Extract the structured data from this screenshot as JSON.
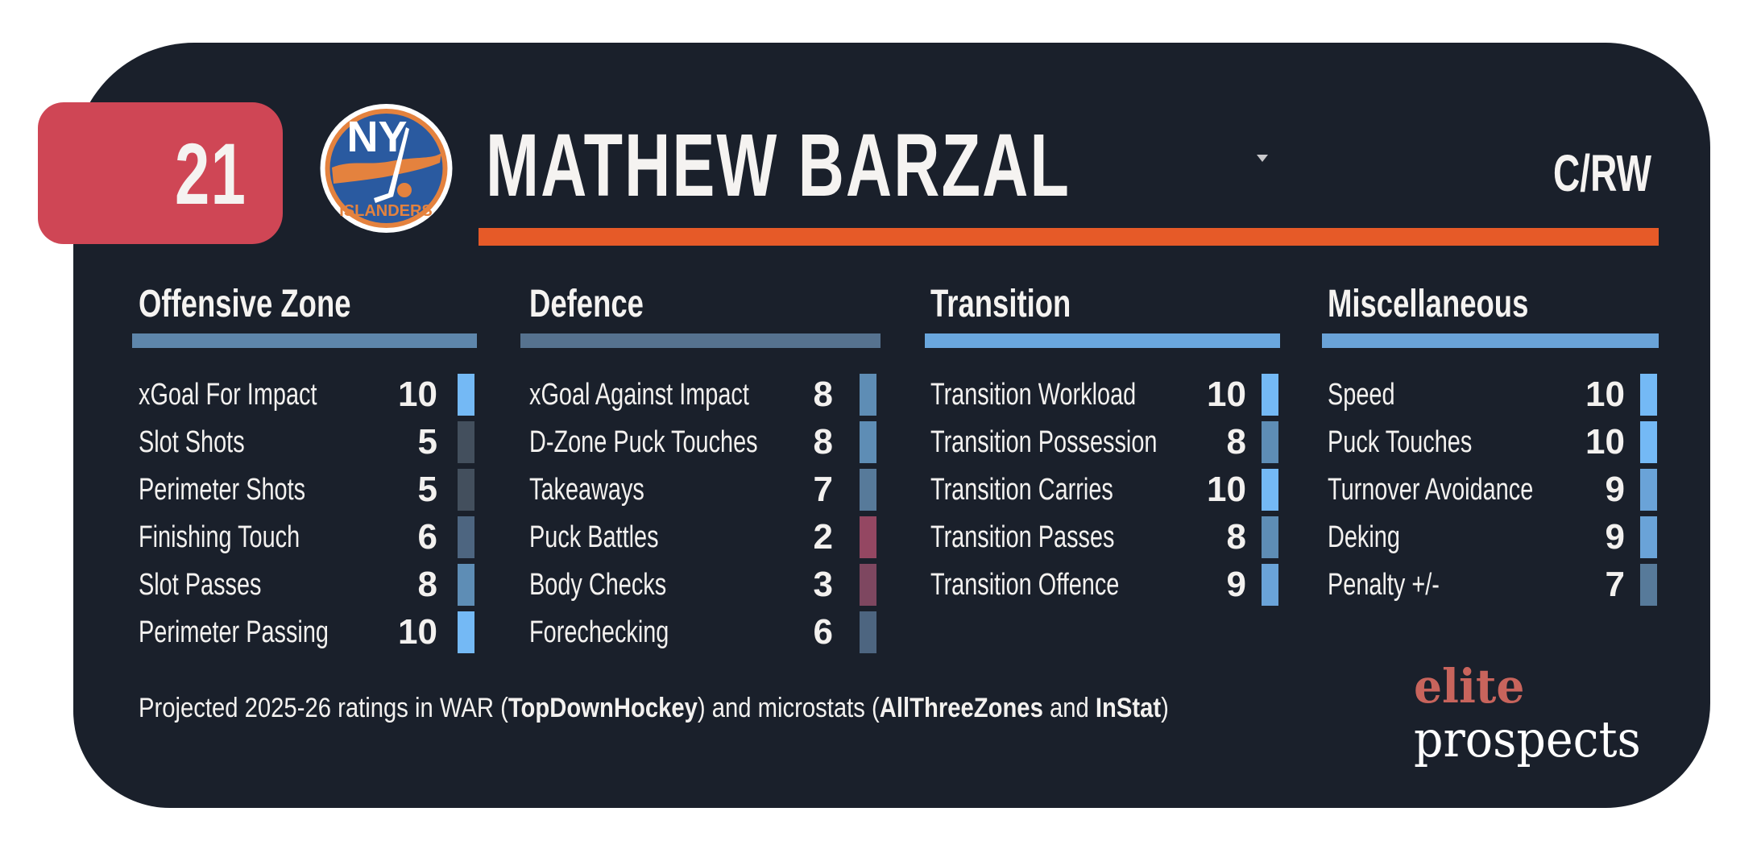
{
  "player": {
    "number": "21",
    "name": "MATHEW BARZAL",
    "position": "C/RW",
    "team_logo_text_top": "NY",
    "team_logo_text_bottom": "ISLANDERS"
  },
  "colors": {
    "card_background": "#1a202b",
    "number_badge": "#cf4655",
    "accent_bar": "#e65a28",
    "logo_blue": "#2a5aa0",
    "logo_orange": "#e4823e",
    "brand_elite": "#c8645c"
  },
  "sections": [
    {
      "title": "Offensive Zone",
      "bar_color": "#5e86ab",
      "items": [
        {
          "label": "xGoal For Impact",
          "value": "10",
          "color": "#74b9f5"
        },
        {
          "label": "Slot Shots",
          "value": "5",
          "color": "#434f5d"
        },
        {
          "label": "Perimeter Shots",
          "value": "5",
          "color": "#434f5d"
        },
        {
          "label": "Finishing Touch",
          "value": "6",
          "color": "#4d6580"
        },
        {
          "label": "Slot Passes",
          "value": "8",
          "color": "#5e8db5"
        },
        {
          "label": "Perimeter Passing",
          "value": "10",
          "color": "#74b9f5"
        }
      ]
    },
    {
      "title": "Defence",
      "bar_color": "#56728f",
      "items": [
        {
          "label": "xGoal Against Impact",
          "value": "8",
          "color": "#5e8db5"
        },
        {
          "label": "D-Zone Puck Touches",
          "value": "8",
          "color": "#5e8db5"
        },
        {
          "label": "Takeaways",
          "value": "7",
          "color": "#577a9a"
        },
        {
          "label": "Puck Battles",
          "value": "2",
          "color": "#944762"
        },
        {
          "label": "Body Checks",
          "value": "3",
          "color": "#7e4760"
        },
        {
          "label": "Forechecking",
          "value": "6",
          "color": "#4d6580"
        }
      ]
    },
    {
      "title": "Transition",
      "bar_color": "#6aa7de",
      "items": [
        {
          "label": "Transition Workload",
          "value": "10",
          "color": "#74b9f5"
        },
        {
          "label": "Transition Possession",
          "value": "8",
          "color": "#5e8db5"
        },
        {
          "label": "Transition Carries",
          "value": "10",
          "color": "#74b9f5"
        },
        {
          "label": "Transition Passes",
          "value": "8",
          "color": "#5e8db5"
        },
        {
          "label": "Transition Offence",
          "value": "9",
          "color": "#6aa3d8"
        }
      ]
    },
    {
      "title": "Miscellaneous",
      "bar_color": "#6aa3d8",
      "items": [
        {
          "label": "Speed",
          "value": "10",
          "color": "#74b9f5"
        },
        {
          "label": "Puck Touches",
          "value": "10",
          "color": "#74b9f5"
        },
        {
          "label": "Turnover Avoidance",
          "value": "9",
          "color": "#6aa3d8"
        },
        {
          "label": "Deking",
          "value": "9",
          "color": "#6aa3d8"
        },
        {
          "label": "Penalty +/-",
          "value": "7",
          "color": "#577a9a"
        }
      ]
    }
  ],
  "footer": {
    "part1": "Projected 2025-26 ratings in WAR (",
    "source1": "TopDownHockey",
    "part2": ") and microstats (",
    "source2": "AllThreeZones",
    "part3": " and ",
    "source3": "InStat",
    "part4": ")"
  },
  "brand": {
    "line1": "elite",
    "line2": "prospects"
  }
}
